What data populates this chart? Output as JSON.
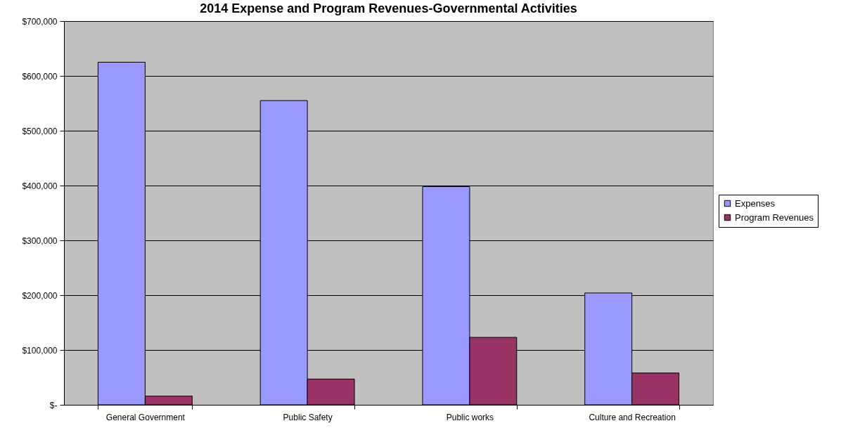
{
  "chart_data": {
    "type": "bar",
    "title": "2014 Expense and Program Revenues-Governmental Activities",
    "categories": [
      "General   Government",
      "Public Safety",
      "Public works",
      "Culture and Recreation"
    ],
    "series": [
      {
        "name": "Expenses",
        "color": "#9999ff",
        "values": [
          625000,
          555000,
          398000,
          204000
        ]
      },
      {
        "name": "Program Revenues",
        "color": "#993366",
        "values": [
          16000,
          47000,
          123000,
          58000
        ]
      }
    ],
    "ylim": [
      0,
      700000
    ],
    "yticks": [
      {
        "value": 0,
        "label": "$-"
      },
      {
        "value": 100000,
        "label": "$100,000"
      },
      {
        "value": 200000,
        "label": "$200,000"
      },
      {
        "value": 300000,
        "label": "$300,000"
      },
      {
        "value": 400000,
        "label": "$400,000"
      },
      {
        "value": 500000,
        "label": "$500,000"
      },
      {
        "value": 600000,
        "label": "$600,000"
      },
      {
        "value": 700000,
        "label": "$700,000"
      }
    ],
    "grid": "y",
    "legend": "right"
  }
}
